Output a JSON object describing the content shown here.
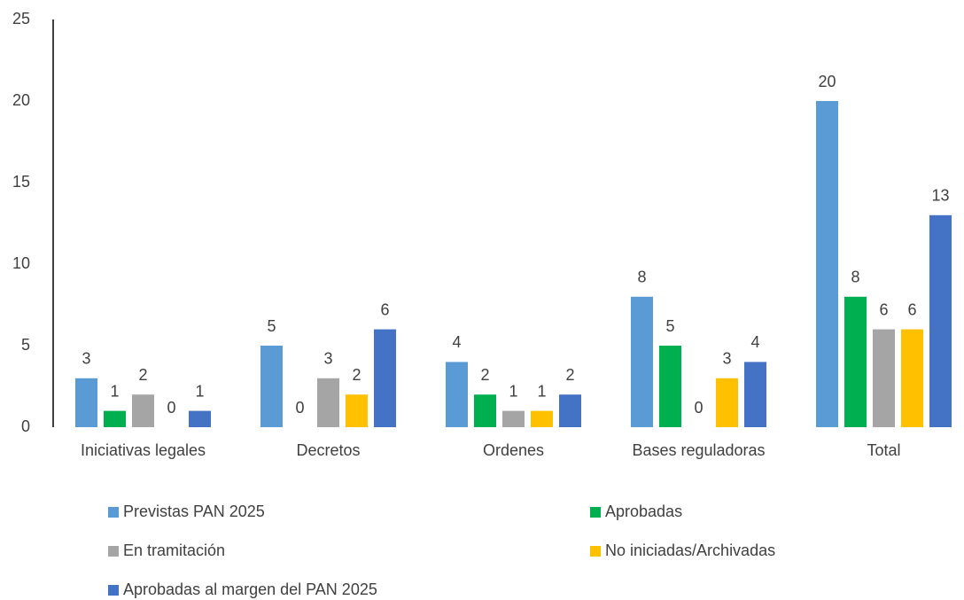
{
  "chart_data": {
    "type": "bar",
    "categories": [
      "Iniciativas legales",
      "Decretos",
      "Ordenes",
      "Bases reguladoras",
      "Total"
    ],
    "series": [
      {
        "name": "Previstas PAN 2025",
        "color": "#5b9bd5",
        "values": [
          3,
          5,
          4,
          8,
          20
        ]
      },
      {
        "name": "Aprobadas",
        "color": "#00b050",
        "values": [
          1,
          0,
          2,
          5,
          8
        ]
      },
      {
        "name": "En tramitación",
        "color": "#a5a5a5",
        "values": [
          2,
          3,
          1,
          0,
          6
        ]
      },
      {
        "name": "No iniciadas/Archivadas",
        "color": "#ffc000",
        "values": [
          0,
          2,
          1,
          3,
          6
        ]
      },
      {
        "name": "Aprobadas al margen del PAN 2025",
        "color": "#4472c4",
        "values": [
          1,
          6,
          2,
          4,
          13
        ]
      }
    ],
    "ylim": [
      0,
      25
    ],
    "yticks": [
      0,
      5,
      10,
      15,
      20,
      25
    ],
    "grid": false,
    "legend": "bottom"
  }
}
